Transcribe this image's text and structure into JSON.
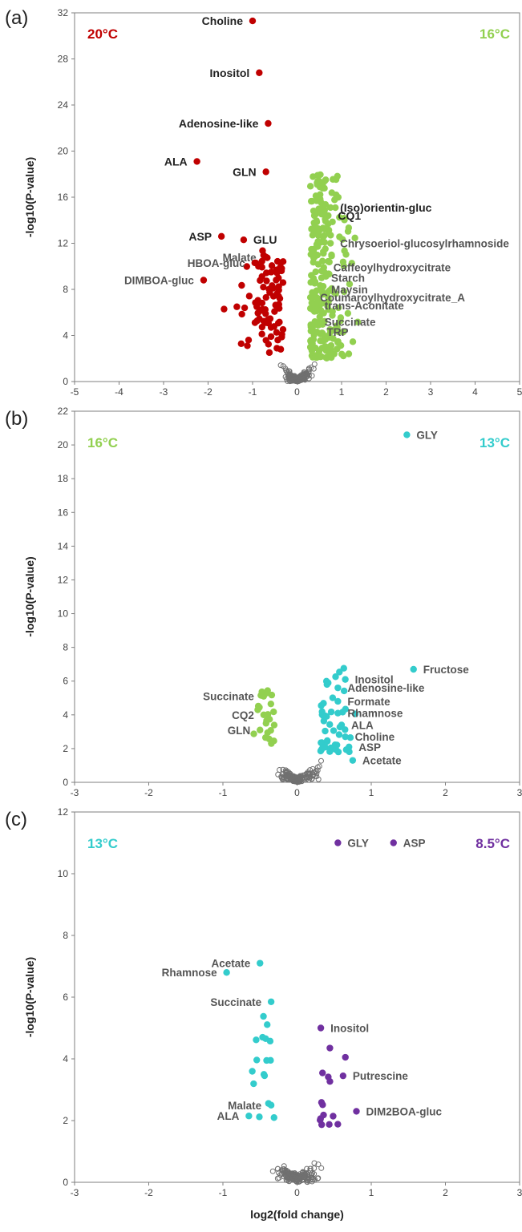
{
  "colors": {
    "warm20": "#c00000",
    "mid16": "#92d050",
    "cool13": "#33cccc",
    "cold85": "#7030a0",
    "nonsig": "#707070",
    "axis": "#7f7f7f",
    "leader": "#8c8c8c"
  },
  "chart_data": [
    {
      "type": "scatter",
      "panel": "(a)",
      "left_condition": "20°C",
      "right_condition": "16°C",
      "ylabel": "-log10(P-value)",
      "xlabel": "",
      "xlim": [
        -5,
        5
      ],
      "ylim": [
        0,
        32
      ],
      "xticks": [
        -5,
        -4,
        -3,
        -2,
        -1,
        0,
        1,
        2,
        3,
        4,
        5
      ],
      "yticks": [
        0,
        4,
        8,
        12,
        16,
        20,
        24,
        28,
        32
      ],
      "grid": false,
      "annotations": [
        {
          "label": "Choline",
          "x": -1.0,
          "y": 31.3,
          "side": "left",
          "dark": true
        },
        {
          "label": "Inositol",
          "x": -0.85,
          "y": 26.8,
          "side": "left",
          "dark": true
        },
        {
          "label": "Adenosine-like",
          "x": -0.65,
          "y": 22.4,
          "side": "left",
          "dark": true
        },
        {
          "label": "ALA",
          "x": -2.25,
          "y": 19.1,
          "side": "left",
          "dark": true
        },
        {
          "label": "GLN",
          "x": -0.7,
          "y": 18.2,
          "side": "left",
          "dark": true
        },
        {
          "label": "ASP",
          "x": -1.7,
          "y": 12.6,
          "side": "left",
          "dark": true
        },
        {
          "label": "GLU",
          "x": -1.2,
          "y": 12.3,
          "side": "right",
          "dark": true
        },
        {
          "label": "Malate",
          "x": -0.7,
          "y": 10.8,
          "side": "left",
          "dark": false
        },
        {
          "label": "HBOA-gluc",
          "x": -0.95,
          "y": 10.3,
          "side": "left",
          "dark": false
        },
        {
          "label": "DIMBOA-gluc",
          "x": -2.1,
          "y": 8.8,
          "side": "left",
          "dark": false
        },
        {
          "label": "(Iso)orientin-gluc",
          "x": 0.75,
          "y": 15.1,
          "side": "right",
          "dark": true
        },
        {
          "label": "CQ1",
          "x": 0.7,
          "y": 14.4,
          "side": "right",
          "dark": true
        },
        {
          "label": "Chrysoeriol-glucosylrhamnoside",
          "x": 0.75,
          "y": 12.0,
          "side": "right",
          "dark": false
        },
        {
          "label": "Caffeoylhydroxycitrate",
          "x": 0.6,
          "y": 9.9,
          "side": "right",
          "dark": false
        },
        {
          "label": "Starch",
          "x": 0.55,
          "y": 9.0,
          "side": "right",
          "dark": false
        },
        {
          "label": "Maysin",
          "x": 0.55,
          "y": 8.0,
          "side": "right",
          "dark": false
        },
        {
          "label": "Coumaroylhydroxycitrate_A",
          "x": 0.3,
          "y": 7.3,
          "side": "right",
          "dark": false
        },
        {
          "label": "trans-Aconitate",
          "x": 0.4,
          "y": 6.6,
          "side": "right",
          "dark": false
        },
        {
          "label": "Succinate",
          "x": 0.4,
          "y": 5.2,
          "side": "right",
          "dark": false
        },
        {
          "label": "TRP",
          "x": 0.45,
          "y": 4.3,
          "side": "right",
          "dark": false
        }
      ]
    },
    {
      "type": "scatter",
      "panel": "(b)",
      "left_condition": "16°C",
      "right_condition": "13°C",
      "ylabel": "-log10(P-value)",
      "xlabel": "",
      "xlim": [
        -3,
        3
      ],
      "ylim": [
        0,
        22
      ],
      "xticks": [
        -3,
        -2,
        -1,
        0,
        1,
        2,
        3
      ],
      "yticks": [
        0,
        2,
        4,
        6,
        8,
        10,
        12,
        14,
        16,
        18,
        20,
        22
      ],
      "grid": false,
      "annotations": [
        {
          "label": "GLY",
          "x": 1.48,
          "y": 20.6,
          "side": "right",
          "dark": false
        },
        {
          "label": "Fructose",
          "x": 1.57,
          "y": 6.7,
          "side": "right",
          "dark": false
        },
        {
          "label": "Inositol",
          "x": 0.65,
          "y": 6.1,
          "side": "right",
          "dark": false
        },
        {
          "label": "Adenosine-like",
          "x": 0.55,
          "y": 5.6,
          "side": "right",
          "dark": false
        },
        {
          "label": "Formate",
          "x": 0.55,
          "y": 4.8,
          "side": "right",
          "dark": false
        },
        {
          "label": "Rhamnose",
          "x": 0.55,
          "y": 4.1,
          "side": "right",
          "dark": false
        },
        {
          "label": "ALA",
          "x": 0.6,
          "y": 3.4,
          "side": "right",
          "dark": false
        },
        {
          "label": "Choline",
          "x": 0.65,
          "y": 2.7,
          "side": "right",
          "dark": false
        },
        {
          "label": "ASP",
          "x": 0.7,
          "y": 2.1,
          "side": "right",
          "dark": false
        },
        {
          "label": "Acetate",
          "x": 0.75,
          "y": 1.3,
          "side": "right",
          "dark": false
        },
        {
          "label": "Succinate",
          "x": -0.45,
          "y": 5.1,
          "side": "left",
          "dark": false
        },
        {
          "label": "CQ2",
          "x": -0.45,
          "y": 4.0,
          "side": "left",
          "dark": false
        },
        {
          "label": "GLN",
          "x": -0.5,
          "y": 3.1,
          "side": "left",
          "dark": false
        }
      ]
    },
    {
      "type": "scatter",
      "panel": "(c)",
      "left_condition": "13°C",
      "right_condition": "8.5°C",
      "ylabel": "-log10(P-value)",
      "xlabel": "log2(fold change)",
      "xlim": [
        -3,
        3
      ],
      "ylim": [
        0,
        12
      ],
      "xticks": [
        -3,
        -2,
        -1,
        0,
        1,
        2,
        3
      ],
      "yticks": [
        0,
        2,
        4,
        6,
        8,
        10,
        12
      ],
      "grid": false,
      "annotations": [
        {
          "label": "GLY",
          "x": 0.55,
          "y": 11.0,
          "side": "right",
          "dark": false
        },
        {
          "label": "ASP",
          "x": 1.3,
          "y": 11.0,
          "side": "right",
          "dark": false
        },
        {
          "label": "Acetate",
          "x": -0.5,
          "y": 7.1,
          "side": "left",
          "dark": false
        },
        {
          "label": "Rhamnose",
          "x": -0.95,
          "y": 6.8,
          "side": "left",
          "dark": false
        },
        {
          "label": "Succinate",
          "x": -0.35,
          "y": 5.85,
          "side": "left",
          "dark": false
        },
        {
          "label": "Inositol",
          "x": 0.32,
          "y": 5.0,
          "side": "right",
          "dark": false
        },
        {
          "label": "Putrescine",
          "x": 0.62,
          "y": 3.45,
          "side": "right",
          "dark": false
        },
        {
          "label": "Malate",
          "x": -0.35,
          "y": 2.5,
          "side": "left",
          "dark": false
        },
        {
          "label": "ALA",
          "x": -0.65,
          "y": 2.15,
          "side": "left",
          "dark": false
        },
        {
          "label": "DIM2BOA-gluc",
          "x": 0.8,
          "y": 2.3,
          "side": "right",
          "dark": false
        }
      ]
    }
  ]
}
